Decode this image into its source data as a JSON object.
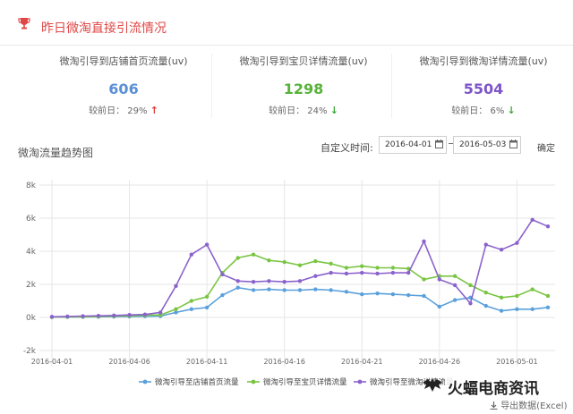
{
  "header": {
    "title": "昨日微淘直接引流情况"
  },
  "stats": [
    {
      "label": "微淘引导到店铺首页流量(uv)",
      "value": "606",
      "compare_label": "较前日：",
      "change": "29%",
      "direction": "up",
      "value_color": "#5b8fd6",
      "arrow_color": "#e03a3a"
    },
    {
      "label": "微淘引导到宝贝详情流量(uv)",
      "value": "1298",
      "compare_label": "较前日：",
      "change": "24%",
      "direction": "down",
      "value_color": "#59b23a",
      "arrow_color": "#3aa83a"
    },
    {
      "label": "微淘引导到微淘详情流量(uv)",
      "value": "5504",
      "compare_label": "较前日：",
      "change": "6%",
      "direction": "down",
      "value_color": "#7d55c8",
      "arrow_color": "#3aa83a"
    }
  ],
  "arrows": {
    "up": "↑",
    "down": "↓"
  },
  "chart_title": "微淘流量趋势图",
  "date_range": {
    "label": "自定义时间:",
    "start": "2016-04-01",
    "end": "2016-05-03",
    "confirm": "确定"
  },
  "export_label": "导出数据(Excel)",
  "watermark_text": "火蝠电商资讯",
  "chart_data": {
    "type": "line",
    "x": [
      "2016-04-01",
      "2016-04-02",
      "2016-04-03",
      "2016-04-04",
      "2016-04-05",
      "2016-04-06",
      "2016-04-07",
      "2016-04-08",
      "2016-04-09",
      "2016-04-10",
      "2016-04-11",
      "2016-04-12",
      "2016-04-13",
      "2016-04-14",
      "2016-04-15",
      "2016-04-16",
      "2016-04-17",
      "2016-04-18",
      "2016-04-19",
      "2016-04-20",
      "2016-04-21",
      "2016-04-22",
      "2016-04-23",
      "2016-04-24",
      "2016-04-25",
      "2016-04-26",
      "2016-04-27",
      "2016-04-28",
      "2016-04-29",
      "2016-04-30",
      "2016-05-01",
      "2016-05-02",
      "2016-05-03"
    ],
    "x_tick_labels": [
      "2016-04-01",
      "2016-04-06",
      "2016-04-11",
      "2016-04-16",
      "2016-04-21",
      "2016-04-26",
      "2016-05-01"
    ],
    "y_ticks": [
      -2000,
      0,
      2000,
      4000,
      6000,
      8000
    ],
    "y_tick_labels": [
      "-2k",
      "0k",
      "2k",
      "4k",
      "6k",
      "8k"
    ],
    "ylim": [
      -2000,
      8000
    ],
    "grid": true,
    "legend_position": "bottom",
    "series": [
      {
        "name": "微淘引导至店铺首页流量",
        "color": "#5aa0dc",
        "values": [
          20,
          30,
          30,
          40,
          50,
          60,
          70,
          80,
          300,
          500,
          600,
          1350,
          1800,
          1650,
          1700,
          1650,
          1650,
          1700,
          1650,
          1550,
          1400,
          1450,
          1400,
          1350,
          1300,
          650,
          1050,
          1200,
          700,
          400,
          500,
          500,
          606
        ]
      },
      {
        "name": "微淘引导至宝贝详情流量",
        "color": "#79c542",
        "values": [
          20,
          30,
          40,
          60,
          80,
          100,
          130,
          150,
          500,
          1000,
          1250,
          2700,
          3600,
          3800,
          3450,
          3350,
          3150,
          3400,
          3250,
          3000,
          3100,
          3000,
          3000,
          2950,
          2300,
          2500,
          2500,
          1950,
          1500,
          1200,
          1300,
          1700,
          1298
        ]
      },
      {
        "name": "微淘引导至微淘详情流量",
        "color": "#8a62cc",
        "values": [
          40,
          60,
          80,
          100,
          120,
          150,
          180,
          300,
          1900,
          3800,
          4400,
          2600,
          2200,
          2150,
          2200,
          2150,
          2200,
          2500,
          2700,
          2650,
          2700,
          2650,
          2700,
          2700,
          4600,
          2300,
          1950,
          850,
          4400,
          4100,
          4500,
          5900,
          5504
        ]
      }
    ]
  }
}
